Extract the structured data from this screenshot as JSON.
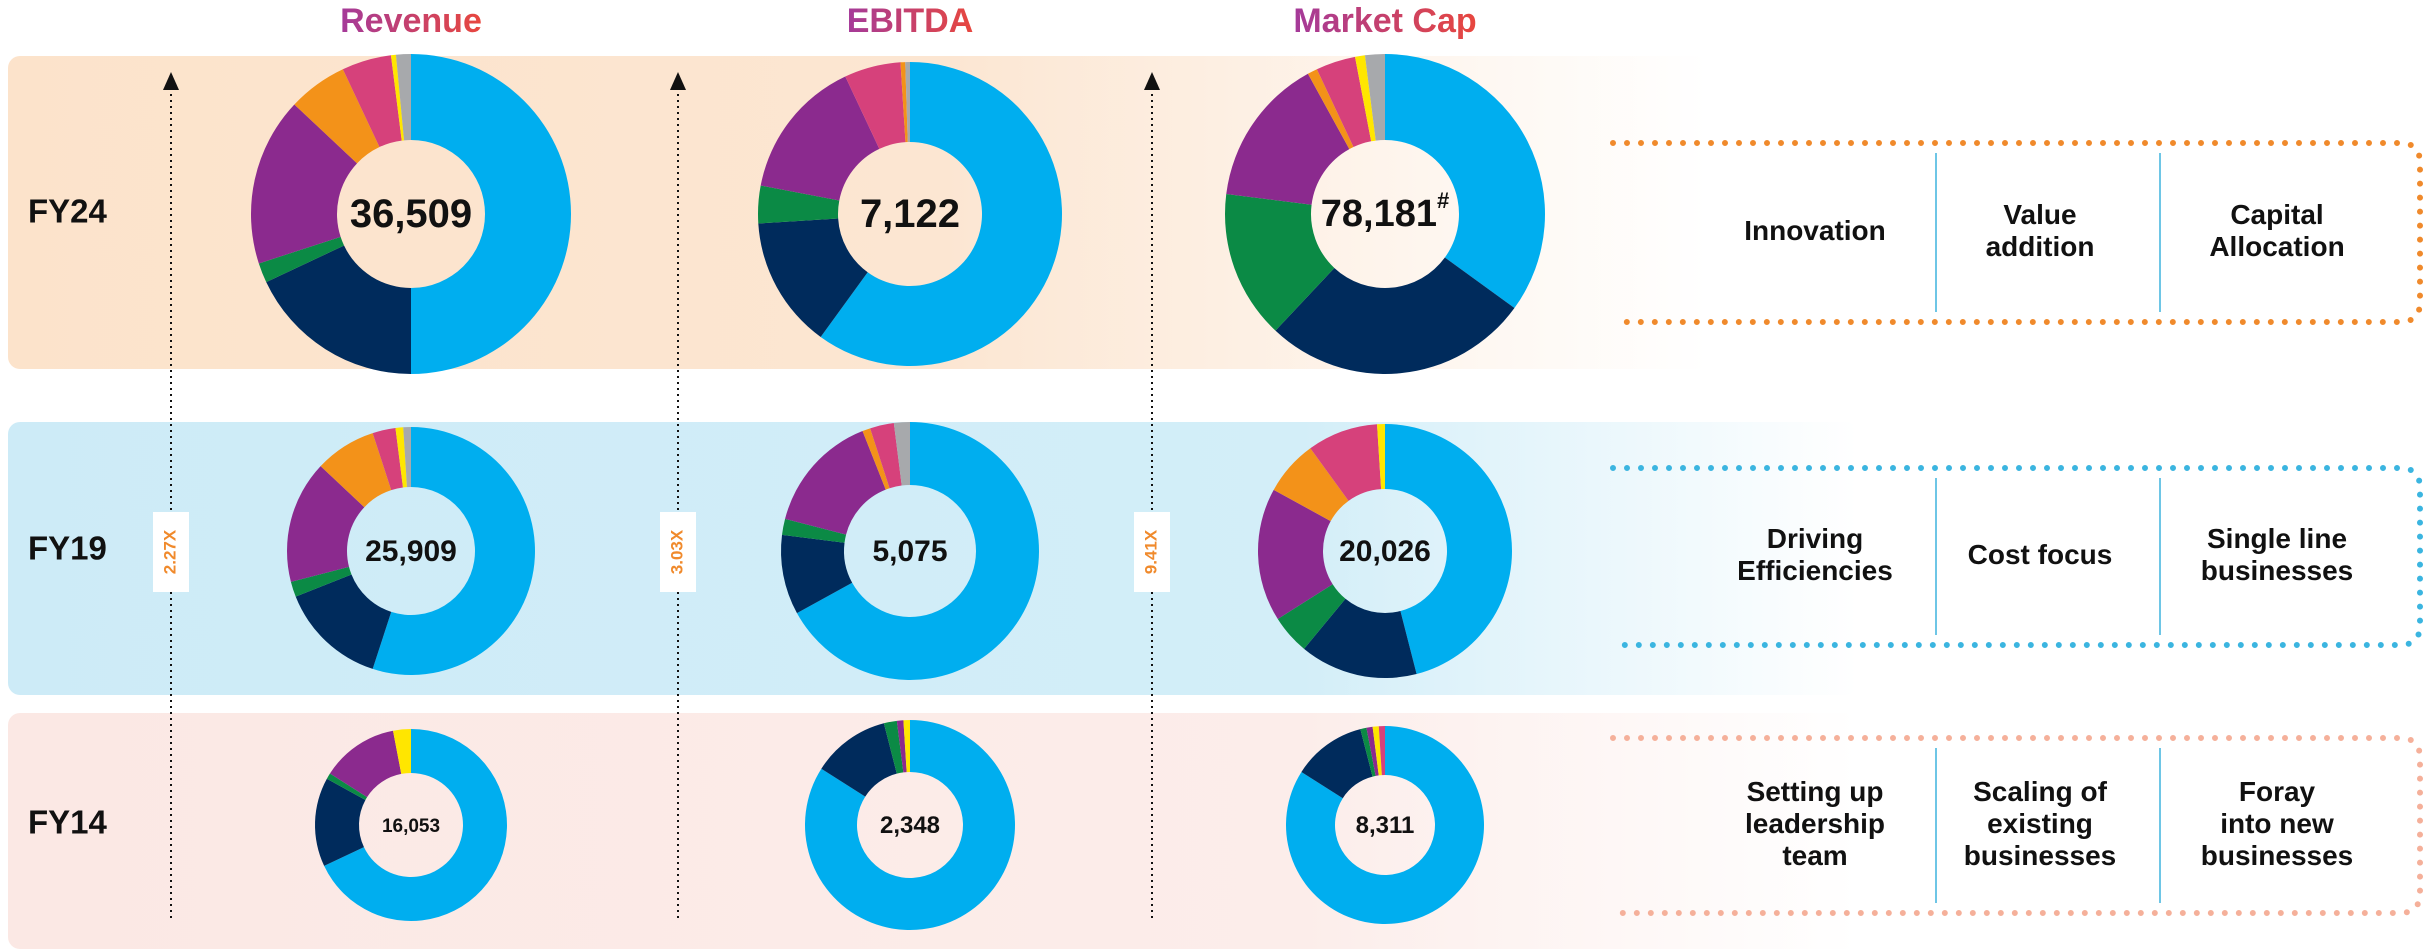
{
  "headers": [
    "Revenue",
    "EBITDA",
    "Market Cap"
  ],
  "multipliers": [
    "2.27X",
    "3.03X",
    "9.41X"
  ],
  "rows": [
    {
      "label": "FY24",
      "themes": [
        [
          "Innovation"
        ],
        [
          "Value",
          "addition"
        ],
        [
          "Capital",
          "Allocation"
        ]
      ],
      "charts": [
        {
          "center": "36,509",
          "segments": [
            {
              "color": "#00AEEF",
              "value": 50
            },
            {
              "color": "#002B5C",
              "value": 18
            },
            {
              "color": "#0B8A45",
              "value": 2
            },
            {
              "color": "#8B2A8E",
              "value": 17
            },
            {
              "color": "#F39219",
              "value": 6
            },
            {
              "color": "#D6417B",
              "value": 5
            },
            {
              "color": "#FFE600",
              "value": 0.5
            },
            {
              "color": "#A7A9AC",
              "value": 1.5
            }
          ]
        },
        {
          "center": "7,122",
          "segments": [
            {
              "color": "#00AEEF",
              "value": 60
            },
            {
              "color": "#002B5C",
              "value": 14
            },
            {
              "color": "#0B8A45",
              "value": 4
            },
            {
              "color": "#8B2A8E",
              "value": 15
            },
            {
              "color": "#D6417B",
              "value": 6
            },
            {
              "color": "#F39219",
              "value": 0.5
            },
            {
              "color": "#A7A9AC",
              "value": 0.5
            }
          ]
        },
        {
          "center": "78,181",
          "note_mark": "#",
          "segments": [
            {
              "color": "#00AEEF",
              "value": 35
            },
            {
              "color": "#002B5C",
              "value": 27
            },
            {
              "color": "#0B8A45",
              "value": 15
            },
            {
              "color": "#8B2A8E",
              "value": 15
            },
            {
              "color": "#F39219",
              "value": 1
            },
            {
              "color": "#D6417B",
              "value": 4
            },
            {
              "color": "#FFE600",
              "value": 1
            },
            {
              "color": "#A7A9AC",
              "value": 2
            }
          ]
        }
      ]
    },
    {
      "label": "FY19",
      "themes": [
        [
          "Driving",
          "Efficiencies"
        ],
        [
          "Cost focus"
        ],
        [
          "Single line",
          "businesses"
        ]
      ],
      "charts": [
        {
          "center": "25,909",
          "segments": [
            {
              "color": "#00AEEF",
              "value": 55
            },
            {
              "color": "#002B5C",
              "value": 14
            },
            {
              "color": "#0B8A45",
              "value": 2
            },
            {
              "color": "#8B2A8E",
              "value": 16
            },
            {
              "color": "#F39219",
              "value": 8
            },
            {
              "color": "#D6417B",
              "value": 3
            },
            {
              "color": "#FFE600",
              "value": 1
            },
            {
              "color": "#A7A9AC",
              "value": 1
            }
          ]
        },
        {
          "center": "5,075",
          "segments": [
            {
              "color": "#00AEEF",
              "value": 67
            },
            {
              "color": "#002B5C",
              "value": 10
            },
            {
              "color": "#0B8A45",
              "value": 2
            },
            {
              "color": "#8B2A8E",
              "value": 15
            },
            {
              "color": "#F39219",
              "value": 1
            },
            {
              "color": "#D6417B",
              "value": 3
            },
            {
              "color": "#A7A9AC",
              "value": 2
            }
          ]
        },
        {
          "center": "20,026",
          "segments": [
            {
              "color": "#00AEEF",
              "value": 46
            },
            {
              "color": "#002B5C",
              "value": 15
            },
            {
              "color": "#0B8A45",
              "value": 5
            },
            {
              "color": "#8B2A8E",
              "value": 17
            },
            {
              "color": "#F39219",
              "value": 7
            },
            {
              "color": "#D6417B",
              "value": 9
            },
            {
              "color": "#FFE600",
              "value": 1
            }
          ]
        }
      ]
    },
    {
      "label": "FY14",
      "themes": [
        [
          "Setting up",
          "leadership",
          "team"
        ],
        [
          "Scaling of",
          "existing",
          "businesses"
        ],
        [
          "Foray",
          "into new",
          "businesses"
        ]
      ],
      "charts": [
        {
          "center": "16,053",
          "segments": [
            {
              "color": "#00AEEF",
              "value": 68
            },
            {
              "color": "#002B5C",
              "value": 15
            },
            {
              "color": "#0B8A45",
              "value": 1
            },
            {
              "color": "#8B2A8E",
              "value": 13
            },
            {
              "color": "#FFE600",
              "value": 3
            }
          ]
        },
        {
          "center": "2,348",
          "segments": [
            {
              "color": "#00AEEF",
              "value": 84
            },
            {
              "color": "#002B5C",
              "value": 12
            },
            {
              "color": "#0B8A45",
              "value": 2
            },
            {
              "color": "#8B2A8E",
              "value": 1
            },
            {
              "color": "#FFE600",
              "value": 1
            }
          ]
        },
        {
          "center": "8,311",
          "segments": [
            {
              "color": "#00AEEF",
              "value": 84
            },
            {
              "color": "#002B5C",
              "value": 12
            },
            {
              "color": "#0B8A45",
              "value": 1
            },
            {
              "color": "#8B2A8E",
              "value": 1
            },
            {
              "color": "#FFE600",
              "value": 1
            },
            {
              "color": "#D6417B",
              "value": 1
            }
          ]
        }
      ]
    }
  ]
}
